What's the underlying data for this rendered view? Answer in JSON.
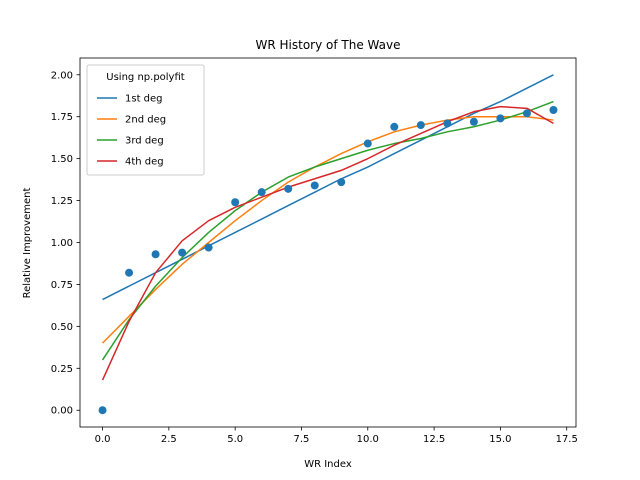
{
  "chart_data": {
    "type": "scatter+line",
    "title": "WR History of The Wave",
    "xlabel": "WR Index",
    "ylabel": "Relative Improvement",
    "xlim": [
      -0.85,
      17.85
    ],
    "ylim": [
      -0.1,
      2.1
    ],
    "xticks": [
      0,
      2.5,
      5,
      7.5,
      10,
      12.5,
      15,
      17.5
    ],
    "xtick_labels": [
      "0.0",
      "2.5",
      "5.0",
      "7.5",
      "10.0",
      "12.5",
      "15.0",
      "17.5"
    ],
    "yticks": [
      0,
      0.25,
      0.5,
      0.75,
      1.0,
      1.25,
      1.5,
      1.75,
      2.0
    ],
    "ytick_labels": [
      "0.00",
      "0.25",
      "0.50",
      "0.75",
      "1.00",
      "1.25",
      "1.50",
      "1.75",
      "2.00"
    ],
    "grid": false,
    "legend": {
      "title": "Using np.polyfit",
      "placement": "upper-left"
    },
    "scatter": {
      "color": "#1f77b4",
      "x": [
        0,
        1,
        2,
        3,
        4,
        5,
        6,
        7,
        8,
        9,
        10,
        11,
        12,
        13,
        14,
        15,
        16,
        17
      ],
      "y": [
        0.0,
        0.82,
        0.93,
        0.94,
        0.97,
        1.24,
        1.3,
        1.32,
        1.34,
        1.36,
        1.59,
        1.69,
        1.7,
        1.71,
        1.72,
        1.74,
        1.77,
        1.79
      ]
    },
    "series": [
      {
        "name": "1st deg",
        "color": "#1f77b4",
        "x": [
          0,
          1,
          2,
          3,
          4,
          5,
          6,
          7,
          8,
          9,
          10,
          11,
          12,
          13,
          14,
          15,
          16,
          17
        ],
        "y": [
          0.66,
          0.74,
          0.82,
          0.9,
          0.98,
          1.06,
          1.14,
          1.22,
          1.3,
          1.38,
          1.45,
          1.53,
          1.61,
          1.69,
          1.77,
          1.84,
          1.92,
          2.0
        ]
      },
      {
        "name": "2nd deg",
        "color": "#ff7f0e",
        "x": [
          0,
          1,
          2,
          3,
          4,
          5,
          6,
          7,
          8,
          9,
          10,
          11,
          12,
          13,
          14,
          15,
          16,
          17
        ],
        "y": [
          0.4,
          0.56,
          0.72,
          0.87,
          1.0,
          1.13,
          1.25,
          1.36,
          1.45,
          1.53,
          1.6,
          1.66,
          1.7,
          1.73,
          1.75,
          1.75,
          1.75,
          1.73
        ]
      },
      {
        "name": "3rd deg",
        "color": "#2ca02c",
        "x": [
          0,
          1,
          2,
          3,
          4,
          5,
          6,
          7,
          8,
          9,
          10,
          11,
          12,
          13,
          14,
          15,
          16,
          17
        ],
        "y": [
          0.3,
          0.54,
          0.74,
          0.91,
          1.06,
          1.19,
          1.3,
          1.39,
          1.45,
          1.5,
          1.55,
          1.59,
          1.62,
          1.66,
          1.69,
          1.73,
          1.78,
          1.84
        ]
      },
      {
        "name": "4th deg",
        "color": "#d62728",
        "x": [
          0,
          1,
          2,
          3,
          4,
          5,
          6,
          7,
          8,
          9,
          10,
          11,
          12,
          13,
          14,
          15,
          16,
          17
        ],
        "y": [
          0.18,
          0.53,
          0.82,
          1.01,
          1.13,
          1.21,
          1.27,
          1.33,
          1.38,
          1.43,
          1.5,
          1.58,
          1.65,
          1.72,
          1.78,
          1.81,
          1.8,
          1.71
        ]
      }
    ]
  }
}
